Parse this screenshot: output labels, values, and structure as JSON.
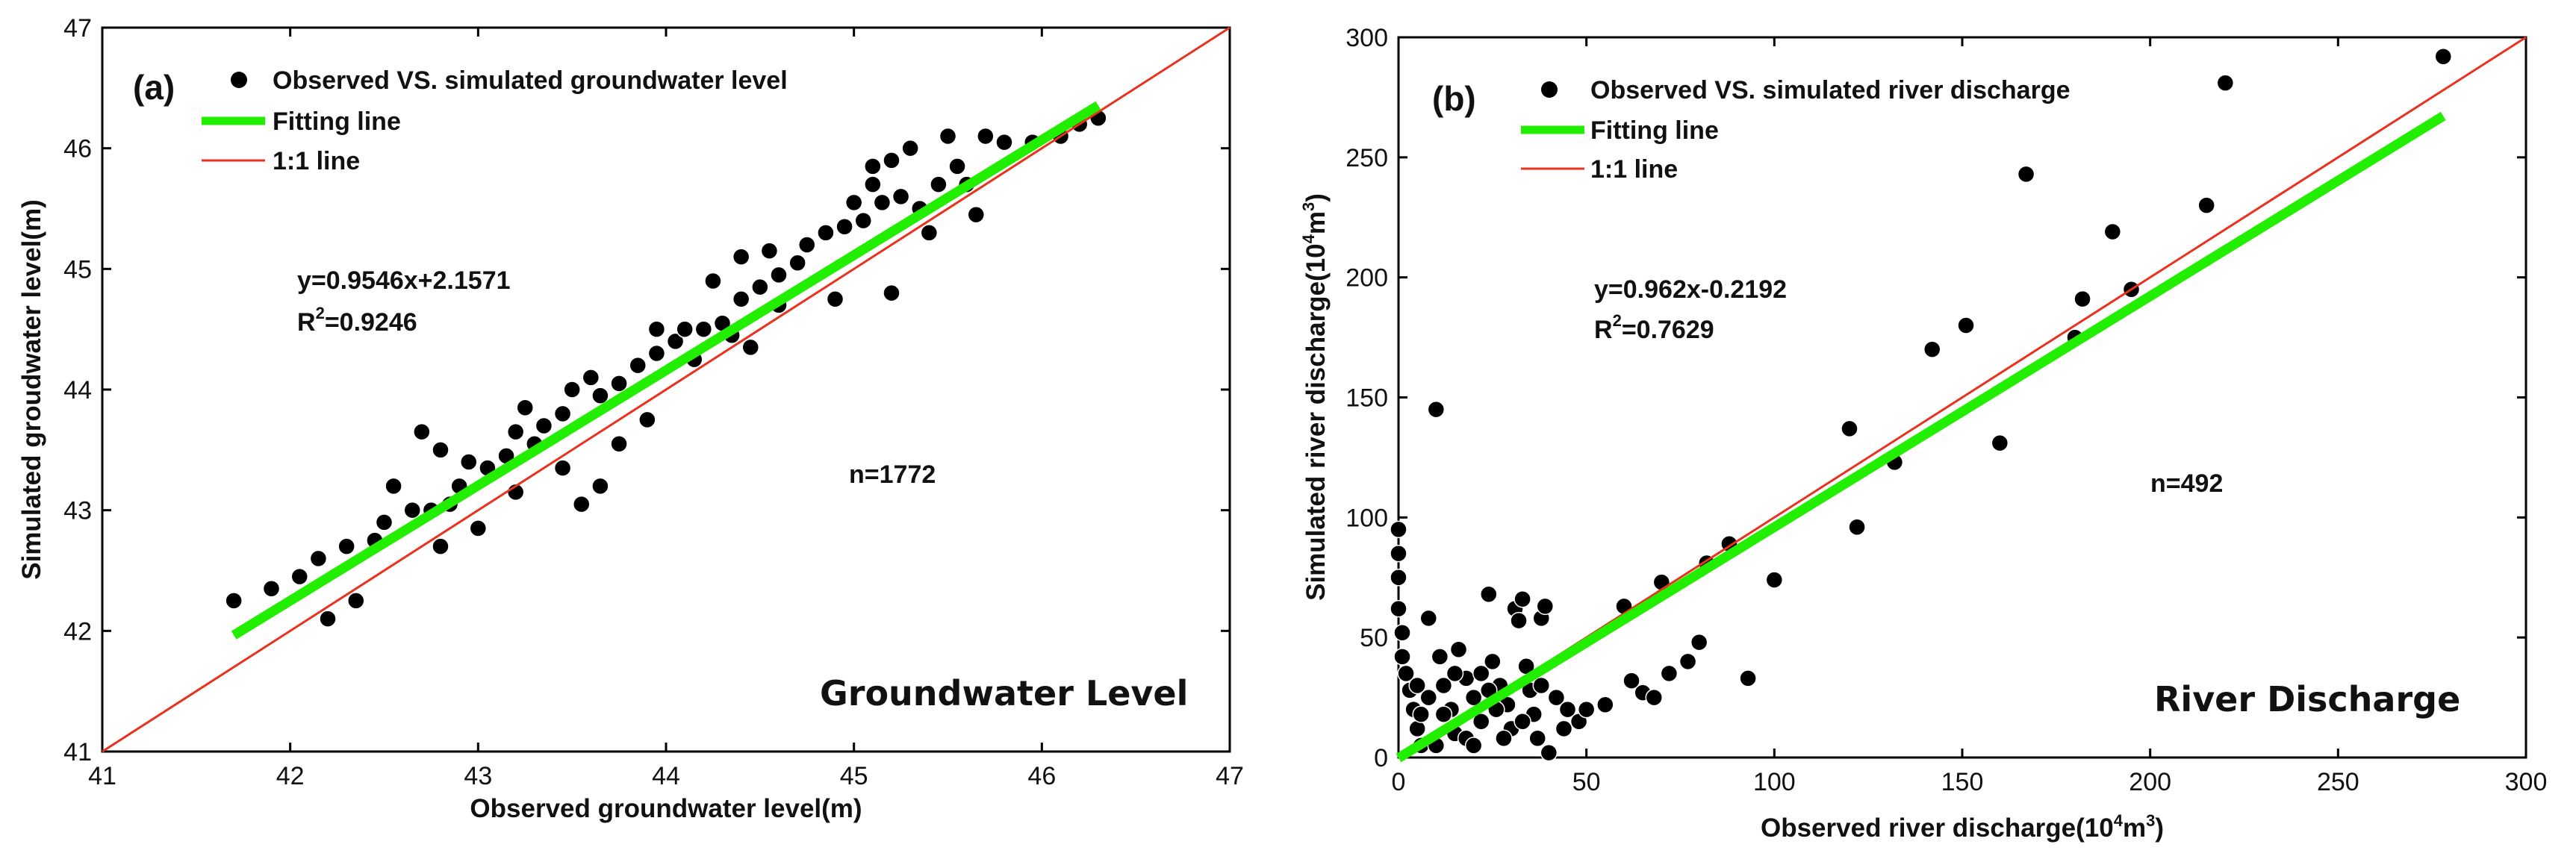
{
  "chart_data": [
    {
      "id": "a",
      "type": "scatter",
      "panel_label": "(a)",
      "xlabel": "Observed groundwater level(m)",
      "ylabel": "Simulated groudwater level(m)",
      "xlim": [
        41,
        47
      ],
      "ylim": [
        41,
        47
      ],
      "xticks": [
        41,
        42,
        43,
        44,
        45,
        46,
        47
      ],
      "yticks": [
        41,
        42,
        43,
        44,
        45,
        46,
        47
      ],
      "legend": {
        "position": "top-left",
        "entries": [
          {
            "label": "Observed VS. simulated groundwater level",
            "marker": "dot"
          },
          {
            "label": "Fitting line",
            "color": "#22ee00"
          },
          {
            "label": "1:1 line",
            "color": "#e8321e"
          }
        ]
      },
      "equation": "y=0.9546x+2.1571",
      "r2_prefix": "R",
      "r2_sup": "2",
      "r2_value": "=0.9246",
      "n_label": "n=1772",
      "corner_title": "Groundwater Level",
      "fit": {
        "slope": 0.9546,
        "intercept": 2.1571,
        "x_range": [
          41.7,
          46.3
        ]
      },
      "points": [
        [
          41.7,
          42.25
        ],
        [
          41.9,
          42.35
        ],
        [
          42.05,
          42.45
        ],
        [
          42.15,
          42.6
        ],
        [
          42.3,
          42.7
        ],
        [
          42.45,
          42.75
        ],
        [
          42.5,
          42.9
        ],
        [
          42.55,
          43.2
        ],
        [
          42.65,
          43.0
        ],
        [
          42.75,
          43.0
        ],
        [
          42.85,
          43.05
        ],
        [
          42.9,
          43.2
        ],
        [
          42.95,
          43.4
        ],
        [
          42.8,
          43.5
        ],
        [
          42.7,
          43.65
        ],
        [
          43.05,
          43.35
        ],
        [
          43.15,
          43.45
        ],
        [
          43.2,
          43.65
        ],
        [
          43.25,
          43.85
        ],
        [
          43.3,
          43.55
        ],
        [
          43.35,
          43.7
        ],
        [
          43.45,
          43.8
        ],
        [
          43.5,
          44.0
        ],
        [
          43.6,
          44.1
        ],
        [
          43.65,
          43.95
        ],
        [
          43.75,
          44.05
        ],
        [
          43.85,
          44.2
        ],
        [
          43.95,
          44.3
        ],
        [
          44.05,
          44.4
        ],
        [
          44.1,
          44.5
        ],
        [
          44.2,
          44.5
        ],
        [
          44.3,
          44.55
        ],
        [
          44.35,
          44.45
        ],
        [
          44.4,
          44.75
        ],
        [
          44.4,
          45.1
        ],
        [
          44.5,
          44.85
        ],
        [
          44.6,
          44.95
        ],
        [
          44.7,
          45.05
        ],
        [
          44.75,
          45.2
        ],
        [
          44.85,
          45.3
        ],
        [
          44.95,
          45.35
        ],
        [
          45.0,
          45.55
        ],
        [
          45.05,
          45.4
        ],
        [
          45.1,
          45.7
        ],
        [
          45.15,
          45.55
        ],
        [
          45.2,
          45.9
        ],
        [
          45.25,
          45.6
        ],
        [
          45.35,
          45.5
        ],
        [
          45.4,
          45.3
        ],
        [
          45.45,
          45.7
        ],
        [
          45.5,
          46.1
        ],
        [
          45.55,
          45.85
        ],
        [
          45.6,
          45.7
        ],
        [
          45.7,
          46.1
        ],
        [
          45.8,
          46.05
        ],
        [
          45.95,
          46.05
        ],
        [
          46.1,
          46.1
        ],
        [
          46.2,
          46.2
        ],
        [
          46.3,
          46.25
        ],
        [
          45.3,
          46.0
        ],
        [
          45.1,
          45.85
        ],
        [
          44.6,
          44.7
        ],
        [
          45.2,
          44.8
        ],
        [
          44.9,
          44.75
        ],
        [
          44.45,
          44.35
        ],
        [
          43.9,
          43.75
        ],
        [
          43.75,
          43.55
        ],
        [
          43.45,
          43.35
        ],
        [
          43.2,
          43.15
        ],
        [
          43.0,
          42.85
        ],
        [
          42.8,
          42.7
        ],
        [
          43.55,
          43.05
        ],
        [
          43.65,
          43.2
        ],
        [
          42.35,
          42.25
        ],
        [
          42.2,
          42.1
        ],
        [
          43.95,
          44.5
        ],
        [
          44.15,
          44.25
        ],
        [
          44.55,
          45.15
        ],
        [
          44.25,
          44.9
        ],
        [
          45.65,
          45.45
        ]
      ]
    },
    {
      "id": "b",
      "type": "scatter",
      "panel_label": "(b)",
      "xlabel_main": "Observed river discharge(10",
      "xlabel_sup": "4",
      "xlabel_end": "m",
      "xlabel_sup2": "3",
      "xlabel_close": ")",
      "ylabel_main": "Simulated river discharge(10",
      "ylabel_sup": "4",
      "ylabel_end": "m",
      "ylabel_sup2": "3",
      "ylabel_close": ")",
      "xlim": [
        0,
        300
      ],
      "ylim": [
        0,
        300
      ],
      "xticks": [
        0,
        50,
        100,
        150,
        200,
        250,
        300
      ],
      "yticks": [
        0,
        50,
        100,
        150,
        200,
        250,
        300
      ],
      "legend": {
        "position": "top-left",
        "entries": [
          {
            "label": "Observed VS. simulated river discharge",
            "marker": "dot"
          },
          {
            "label": "Fitting line",
            "color": "#22ee00"
          },
          {
            "label": "1:1 line",
            "color": "#e8321e"
          }
        ]
      },
      "equation": "y=0.962x-0.2192",
      "r2_prefix": "R",
      "r2_sup": "2",
      "r2_value": "=0.7629",
      "n_label": "n=492",
      "corner_title": "River Discharge",
      "fit": {
        "slope": 0.962,
        "intercept": -0.2192,
        "x_range": [
          0,
          278
        ]
      },
      "points": [
        [
          0,
          95
        ],
        [
          0,
          85
        ],
        [
          0,
          75
        ],
        [
          0,
          62
        ],
        [
          1,
          52
        ],
        [
          1,
          42
        ],
        [
          2,
          35
        ],
        [
          3,
          28
        ],
        [
          4,
          20
        ],
        [
          5,
          12
        ],
        [
          6,
          5
        ],
        [
          8,
          58
        ],
        [
          10,
          145
        ],
        [
          11,
          42
        ],
        [
          12,
          30
        ],
        [
          14,
          20
        ],
        [
          15,
          10
        ],
        [
          16,
          45
        ],
        [
          18,
          33
        ],
        [
          20,
          25
        ],
        [
          22,
          15
        ],
        [
          24,
          68
        ],
        [
          25,
          40
        ],
        [
          27,
          30
        ],
        [
          29,
          22
        ],
        [
          30,
          12
        ],
        [
          31,
          62
        ],
        [
          32,
          57
        ],
        [
          33,
          66
        ],
        [
          34,
          38
        ],
        [
          35,
          28
        ],
        [
          36,
          18
        ],
        [
          37,
          8
        ],
        [
          38,
          58
        ],
        [
          39,
          63
        ],
        [
          40,
          2
        ],
        [
          42,
          25
        ],
        [
          45,
          20
        ],
        [
          48,
          15
        ],
        [
          50,
          20
        ],
        [
          55,
          22
        ],
        [
          60,
          63
        ],
        [
          62,
          32
        ],
        [
          65,
          27
        ],
        [
          68,
          25
        ],
        [
          70,
          73
        ],
        [
          72,
          35
        ],
        [
          77,
          40
        ],
        [
          80,
          48
        ],
        [
          82,
          81
        ],
        [
          88,
          89
        ],
        [
          93,
          33
        ],
        [
          100,
          74
        ],
        [
          120,
          137
        ],
        [
          122,
          96
        ],
        [
          132,
          123
        ],
        [
          142,
          170
        ],
        [
          151,
          180
        ],
        [
          160,
          131
        ],
        [
          167,
          243
        ],
        [
          180,
          175
        ],
        [
          182,
          191
        ],
        [
          190,
          219
        ],
        [
          195,
          195
        ],
        [
          215,
          230
        ],
        [
          220,
          281
        ],
        [
          278,
          292
        ],
        [
          5,
          30
        ],
        [
          8,
          25
        ],
        [
          12,
          18
        ],
        [
          18,
          8
        ],
        [
          22,
          35
        ],
        [
          26,
          20
        ],
        [
          28,
          8
        ],
        [
          33,
          15
        ],
        [
          10,
          5
        ],
        [
          15,
          35
        ],
        [
          20,
          5
        ],
        [
          24,
          28
        ],
        [
          38,
          30
        ],
        [
          44,
          12
        ],
        [
          6,
          18
        ]
      ]
    }
  ]
}
